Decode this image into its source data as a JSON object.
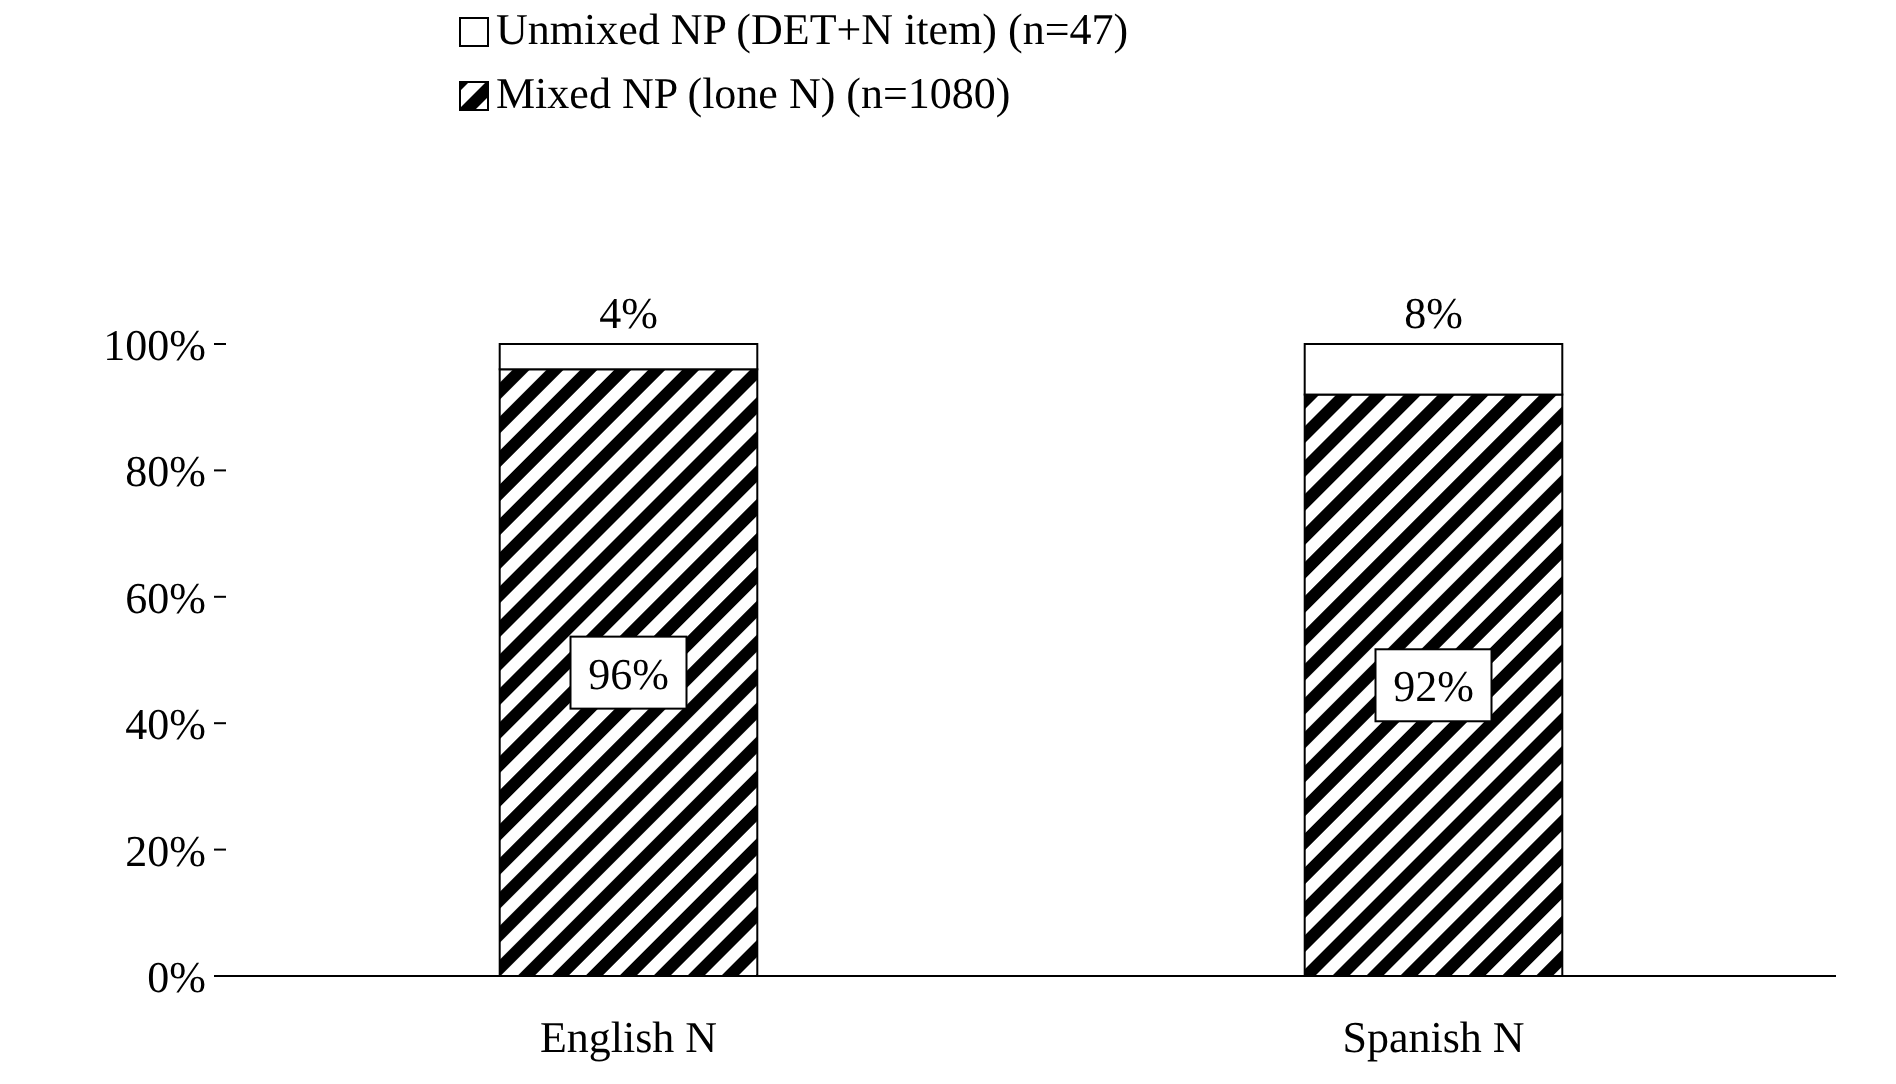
{
  "chart_data": {
    "type": "bar",
    "stacked": true,
    "categories": [
      "English N",
      "Spanish N"
    ],
    "series": [
      {
        "name": "Mixed NP (lone N) (n=1080)",
        "color": "#000000",
        "values": [
          96,
          92
        ],
        "value_labels": [
          "96%",
          "92%"
        ]
      },
      {
        "name": "Unmixed NP (DET+N item) (n=47)",
        "color": "#ffffff",
        "values": [
          4,
          8
        ],
        "value_labels": [
          "4%",
          "8%"
        ]
      }
    ],
    "ylim": [
      0,
      100
    ],
    "yticks": [
      {
        "value": 0,
        "label": "0%"
      },
      {
        "value": 20,
        "label": "20%"
      },
      {
        "value": 40,
        "label": "40%"
      },
      {
        "value": 60,
        "label": "60%"
      },
      {
        "value": 80,
        "label": "80%"
      },
      {
        "value": 100,
        "label": "100%"
      }
    ],
    "grid": false,
    "legend": "top"
  }
}
